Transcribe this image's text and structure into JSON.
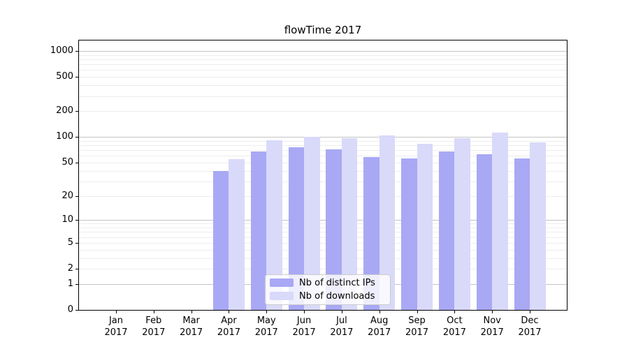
{
  "chart_data": {
    "type": "bar",
    "title": "flowTime 2017",
    "categories": [
      "Jan 2017",
      "Feb 2017",
      "Mar 2017",
      "Apr 2017",
      "May 2017",
      "Jun 2017",
      "Jul 2017",
      "Aug 2017",
      "Sep 2017",
      "Oct 2017",
      "Nov 2017",
      "Dec 2017"
    ],
    "series": [
      {
        "name": "Nb of distinct IPs",
        "color": "#a8a8f5",
        "values": [
          0,
          0,
          0,
          40,
          68,
          75,
          71,
          58,
          56,
          68,
          63,
          56
        ]
      },
      {
        "name": "Nb of downloads",
        "color": "#d9d9fa",
        "values": [
          0,
          0,
          0,
          55,
          91,
          100,
          97,
          105,
          83,
          97,
          113,
          87
        ]
      }
    ],
    "xlabel": "",
    "ylabel": "",
    "y_scale": "symlog (log1p)",
    "y_ticks": [
      0,
      1,
      2,
      5,
      10,
      20,
      50,
      100,
      200,
      500,
      1000
    ],
    "y_minor_gridlines": [
      3,
      4,
      6,
      7,
      8,
      9,
      30,
      40,
      60,
      70,
      80,
      90,
      300,
      400,
      600,
      700,
      800,
      900
    ],
    "ylim": [
      0,
      1320
    ],
    "grid": "on",
    "legend_position": "lower center",
    "colors": {
      "bar_distinct_ips": "#a8a8f5",
      "bar_downloads": "#d9d9fa",
      "major_grid": "#c4c4c4",
      "minor_grid": "#ededed",
      "axis": "#000000",
      "text": "#000000",
      "legend_border": "#cccccc",
      "legend_background": "rgba(255,255,255,0.8)"
    }
  }
}
